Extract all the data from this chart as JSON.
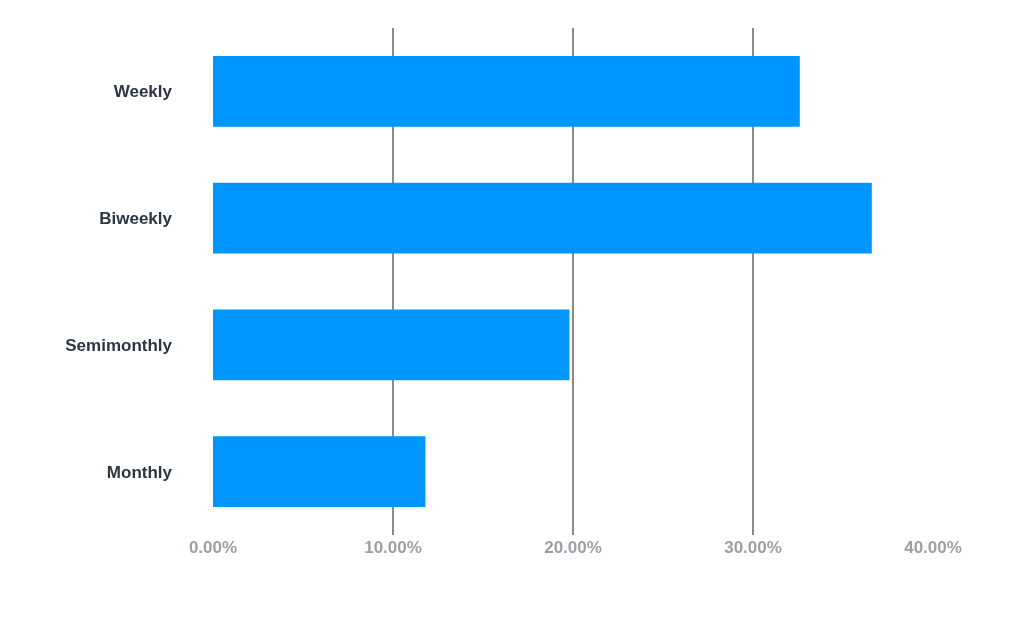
{
  "chart_data": {
    "type": "bar",
    "orientation": "horizontal",
    "categories": [
      "Weekly",
      "Biweekly",
      "Semimonthly",
      "Monthly"
    ],
    "values": [
      32.6,
      36.6,
      19.8,
      11.8
    ],
    "color": "#0096ff",
    "xlim": [
      0,
      40
    ],
    "xticks": [
      {
        "value": 0,
        "label": "0.00%"
      },
      {
        "value": 10,
        "label": "10.00%"
      },
      {
        "value": 20,
        "label": "20.00%"
      },
      {
        "value": 30,
        "label": "30.00%"
      },
      {
        "value": 40,
        "label": "40.00%"
      }
    ],
    "grid": "x"
  }
}
